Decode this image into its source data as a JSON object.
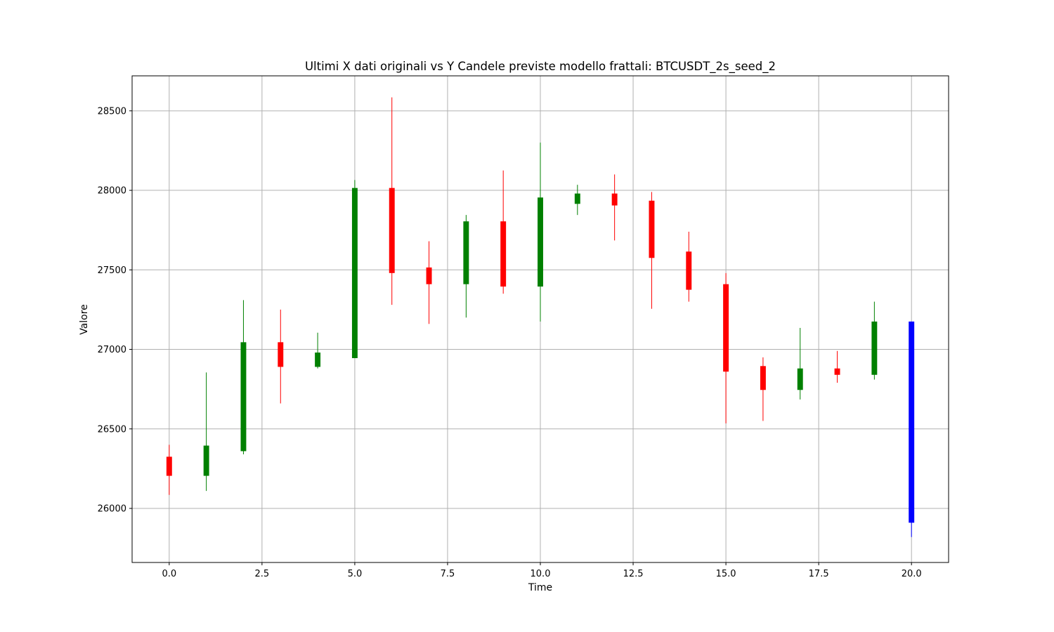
{
  "chart_data": {
    "type": "candlestick",
    "title": "Ultimi X dati originali vs Y Candele previste modello frattali: BTCUSDT_2s_seed_2",
    "xlabel": "Time",
    "ylabel": "Valore",
    "xlim": [
      -1,
      21
    ],
    "ylim": [
      25660,
      28720
    ],
    "xticks": [
      0,
      2.5,
      5,
      7.5,
      10,
      12.5,
      15,
      17.5,
      20
    ],
    "xtick_labels": [
      "0.0",
      "2.5",
      "5.0",
      "7.5",
      "10.0",
      "12.5",
      "15.0",
      "17.5",
      "20.0"
    ],
    "yticks": [
      26000,
      26500,
      27000,
      27500,
      28000,
      28500
    ],
    "ytick_labels": [
      "26000",
      "26500",
      "27000",
      "27500",
      "28000",
      "28500"
    ],
    "grid": true,
    "colors": {
      "up": "#008000",
      "down": "#ff0000",
      "predicted": "#0000ff"
    },
    "candles": [
      {
        "x": 0,
        "open": 26325,
        "high": 26400,
        "low": 26085,
        "close": 26205,
        "color": "down"
      },
      {
        "x": 1,
        "open": 26205,
        "high": 26855,
        "low": 26110,
        "close": 26395,
        "color": "up"
      },
      {
        "x": 2,
        "open": 26360,
        "high": 27310,
        "low": 26340,
        "close": 27045,
        "color": "up"
      },
      {
        "x": 3,
        "open": 27045,
        "high": 27250,
        "low": 26660,
        "close": 26890,
        "color": "down"
      },
      {
        "x": 4,
        "open": 26890,
        "high": 27105,
        "low": 26880,
        "close": 26980,
        "color": "up"
      },
      {
        "x": 5,
        "open": 26945,
        "high": 28065,
        "low": 26945,
        "close": 28015,
        "color": "up"
      },
      {
        "x": 6,
        "open": 28015,
        "high": 28585,
        "low": 27280,
        "close": 27480,
        "color": "down"
      },
      {
        "x": 7,
        "open": 27515,
        "high": 27680,
        "low": 27160,
        "close": 27410,
        "color": "down"
      },
      {
        "x": 8,
        "open": 27410,
        "high": 27845,
        "low": 27200,
        "close": 27805,
        "color": "up"
      },
      {
        "x": 9,
        "open": 27805,
        "high": 28125,
        "low": 27350,
        "close": 27395,
        "color": "down"
      },
      {
        "x": 10,
        "open": 27395,
        "high": 28300,
        "low": 27175,
        "close": 27955,
        "color": "up"
      },
      {
        "x": 11,
        "open": 27915,
        "high": 28035,
        "low": 27845,
        "close": 27980,
        "color": "up"
      },
      {
        "x": 12,
        "open": 27980,
        "high": 28100,
        "low": 27685,
        "close": 27905,
        "color": "down"
      },
      {
        "x": 13,
        "open": 27935,
        "high": 27990,
        "low": 27255,
        "close": 27575,
        "color": "down"
      },
      {
        "x": 14,
        "open": 27615,
        "high": 27740,
        "low": 27300,
        "close": 27375,
        "color": "down"
      },
      {
        "x": 15,
        "open": 27410,
        "high": 27480,
        "low": 26535,
        "close": 26860,
        "color": "down"
      },
      {
        "x": 16,
        "open": 26895,
        "high": 26950,
        "low": 26550,
        "close": 26745,
        "color": "down"
      },
      {
        "x": 17,
        "open": 26745,
        "high": 27135,
        "low": 26685,
        "close": 26880,
        "color": "up"
      },
      {
        "x": 18,
        "open": 26880,
        "high": 26990,
        "low": 26790,
        "close": 26840,
        "color": "down"
      },
      {
        "x": 19,
        "open": 26840,
        "high": 27300,
        "low": 26810,
        "close": 27175,
        "color": "up"
      },
      {
        "x": 20,
        "open": 27175,
        "high": 27175,
        "low": 25820,
        "close": 25910,
        "color": "predicted"
      }
    ]
  }
}
